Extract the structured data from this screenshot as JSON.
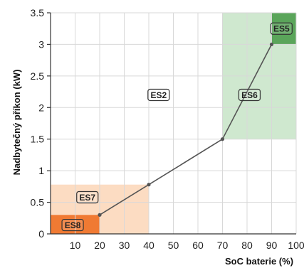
{
  "chart_data": {
    "type": "line",
    "title": "",
    "xlabel": "SoC baterie (%)",
    "ylabel": "Nadbytečný příkon (kW)",
    "xlim": [
      0,
      100
    ],
    "ylim": [
      0,
      3.5
    ],
    "x_ticks": [
      10,
      20,
      30,
      40,
      50,
      60,
      70,
      80,
      90,
      100
    ],
    "y_ticks": [
      0,
      0.5,
      1,
      1.5,
      2,
      2.5,
      3,
      3.5
    ],
    "x_tick_labels": [
      "10",
      "20",
      "30",
      "40",
      "50",
      "60",
      "70",
      "80",
      "90",
      "100"
    ],
    "y_tick_labels": [
      "0",
      "0.5",
      "1",
      "1.5",
      "2",
      "2.5",
      "3",
      "3.5"
    ],
    "grid": true,
    "series": [
      {
        "x": [
          20,
          40,
          70,
          90
        ],
        "y": [
          0.3,
          0.78,
          1.5,
          3.0
        ],
        "color": "#555555"
      }
    ],
    "regions": [
      {
        "label": "ES7",
        "x": [
          0,
          40
        ],
        "y": [
          0,
          0.78
        ],
        "color": "#fcdcc2",
        "label_at": [
          15,
          0.58
        ]
      },
      {
        "label": "ES8",
        "x": [
          0,
          20
        ],
        "y": [
          0,
          0.3
        ],
        "color": "#f07a33",
        "label_at": [
          9,
          0.14
        ]
      },
      {
        "label": "ES6",
        "x": [
          70,
          100
        ],
        "y": [
          1.5,
          3.5
        ],
        "color": "#cfe8cf",
        "label_at": [
          81,
          2.2
        ]
      },
      {
        "label": "ES5",
        "x": [
          90,
          100
        ],
        "y": [
          3.0,
          3.5
        ],
        "color": "#5aa55a",
        "label_at": [
          94,
          3.25
        ]
      },
      {
        "label": "ES2",
        "x": null,
        "y": null,
        "color": null,
        "label_at": [
          44,
          2.2
        ]
      }
    ]
  }
}
